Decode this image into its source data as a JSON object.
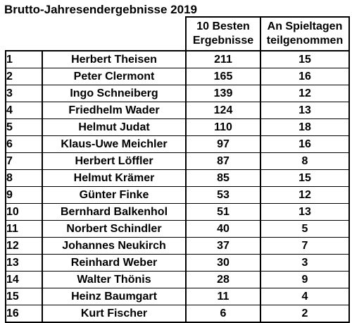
{
  "document": {
    "title": "Brutto-Jahresendergebnisse 2019"
  },
  "table": {
    "headers": {
      "score_line1": "10 Besten",
      "score_line2": "Ergebnisse",
      "days_line1": "An Spieltagen",
      "days_line2": "teilgenommen"
    },
    "rows": [
      {
        "rank": "1",
        "name": "Herbert Theisen",
        "score": "211",
        "days": "15"
      },
      {
        "rank": "2",
        "name": "Peter Clermont",
        "score": "165",
        "days": "16"
      },
      {
        "rank": "3",
        "name": "Ingo Schneiberg",
        "score": "139",
        "days": "12"
      },
      {
        "rank": "4",
        "name": "Friedhelm Wader",
        "score": "124",
        "days": "13"
      },
      {
        "rank": "5",
        "name": "Helmut Judat",
        "score": "110",
        "days": "18"
      },
      {
        "rank": "6",
        "name": "Klaus-Uwe Meichler",
        "score": "97",
        "days": "16"
      },
      {
        "rank": "7",
        "name": "Herbert Löffler",
        "score": "87",
        "days": "8"
      },
      {
        "rank": "8",
        "name": "Helmut Krämer",
        "score": "85",
        "days": "15"
      },
      {
        "rank": "9",
        "name": "Günter Finke",
        "score": "53",
        "days": "12"
      },
      {
        "rank": "10",
        "name": "Bernhard Balkenhol",
        "score": "51",
        "days": "13"
      },
      {
        "rank": "11",
        "name": "Norbert Schindler",
        "score": "40",
        "days": "5"
      },
      {
        "rank": "12",
        "name": "Johannes Neukirch",
        "score": "37",
        "days": "7"
      },
      {
        "rank": "13",
        "name": "Reinhard Weber",
        "score": "30",
        "days": "3"
      },
      {
        "rank": "14",
        "name": "Walter Thönis",
        "score": "28",
        "days": "9"
      },
      {
        "rank": "15",
        "name": "Heinz Baumgart",
        "score": "11",
        "days": "4"
      },
      {
        "rank": "16",
        "name": "Kurt Fischer",
        "score": "6",
        "days": "2"
      }
    ]
  }
}
